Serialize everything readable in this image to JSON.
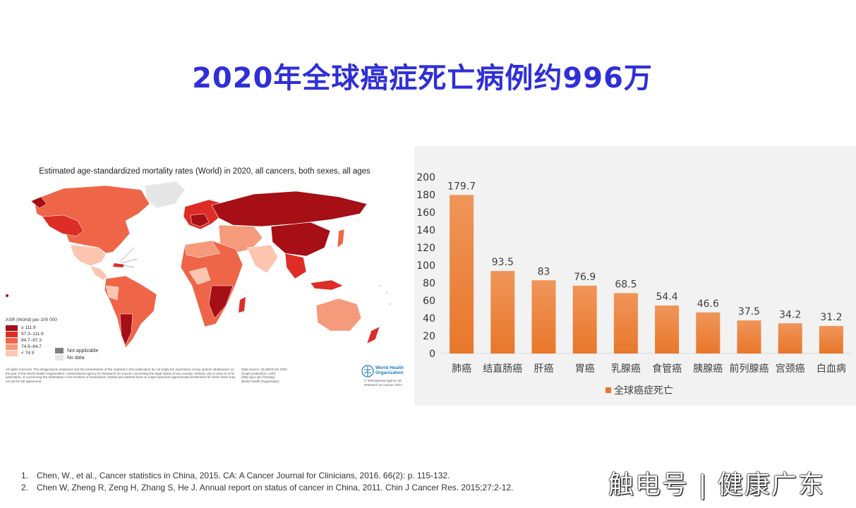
{
  "slide": {
    "title": "2020年全球癌症死亡病例约996万"
  },
  "map": {
    "title": "Estimated age-standardized mortality rates (World) in 2020, all cancers, both sexes, all ages",
    "legend_title": "ASR (World) per 100 000",
    "legend_items": [
      {
        "label": "≥ 111.9",
        "color": "#a50f15"
      },
      {
        "label": "97.3–111.9",
        "color": "#de2d26"
      },
      {
        "label": "84.7–97.3",
        "color": "#ef6548"
      },
      {
        "label": "74.9–84.7",
        "color": "#f59a7a"
      },
      {
        "label": "< 74.9",
        "color": "#fcc5b0"
      }
    ],
    "extra_legend": [
      {
        "label": "Not applicable",
        "color": "#7f7f7f"
      },
      {
        "label": "No data",
        "color": "#e6e6e6"
      }
    ],
    "disclaimer": "All rights reserved. The designations employed and the presentation of the material in this publication do not imply the expression of any opinion whatsoever on the part of the World Health Organization / International Agency for Research on Cancer concerning the legal status of any country, territory, city or area or of its authorities, or concerning the delimitation of its frontiers or boundaries. Dotted and dashed lines on maps represent approximate borderlines for which there may not yet be full agreement.",
    "source_lines": [
      "Data source: GLOBOCAN 2020",
      "Graph production: IARC",
      "(http://gco.iarc.fr/today)",
      "World Health Organization"
    ],
    "who_name": [
      "World Health",
      "Organization"
    ],
    "iarc_lines": [
      "© International Agency for",
      "Research on Cancer 2021"
    ]
  },
  "chart_data": {
    "type": "bar",
    "categories": [
      "肺癌",
      "结直肠癌",
      "肝癌",
      "胃癌",
      "乳腺癌",
      "食管癌",
      "胰腺癌",
      "前列腺癌",
      "宫颈癌",
      "白血病"
    ],
    "series": [
      {
        "name": "全球癌症死亡",
        "values": [
          179.7,
          93.5,
          83,
          76.9,
          68.5,
          54.4,
          46.6,
          37.5,
          34.2,
          31.2
        ]
      }
    ],
    "data_labels": [
      "179.7",
      "93.5",
      "83",
      "76.9",
      "68.5",
      "54.4",
      "46.6",
      "37.5",
      "34.2",
      "31.2"
    ],
    "yticks": [
      0,
      20,
      40,
      60,
      80,
      100,
      120,
      140,
      160,
      180,
      200
    ],
    "ylim": [
      0,
      200
    ],
    "legend_position": "bottom",
    "color": "#e8772a",
    "grid": false
  },
  "references": [
    {
      "num": "1.",
      "text": "Chen, W., et al., Cancer statistics in China, 2015. CA: A Cancer Journal for Clinicians, 2016. 66(2): p. 115-132."
    },
    {
      "num": "2.",
      "text": "Chen W, Zheng R, Zeng H, Zhang S, He J. Annual report on status of cancer in China, 2011. Chin J Cancer Res. 2015;27:2-12."
    }
  ],
  "watermark": "触电号 | 健康广东"
}
